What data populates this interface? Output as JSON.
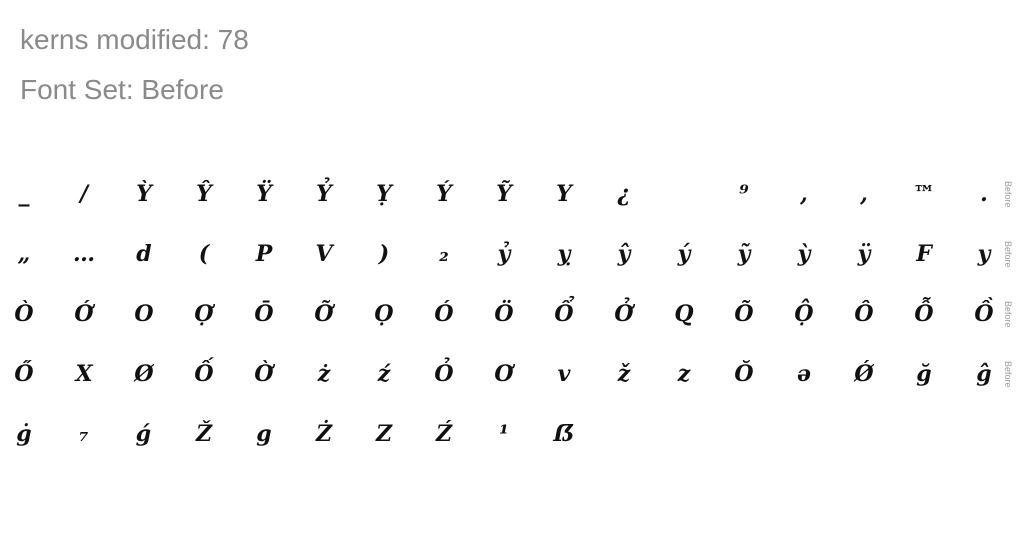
{
  "header": {
    "kerns_text": "kerns modified: 78",
    "fontset_text": "Font Set: Before"
  },
  "rows": [
    {
      "tag": "Before",
      "glyphs": [
        "_",
        "/",
        "Ỳ",
        "Ŷ",
        "Ÿ",
        "Ỷ",
        "Ỵ",
        "Ý",
        "Ỹ",
        "Y",
        "¿",
        "",
        "⁹",
        ",",
        ",",
        "™",
        "."
      ]
    },
    {
      "tag": "Before",
      "glyphs": [
        "„",
        "…",
        "d",
        "(",
        "P",
        "V",
        ")",
        "₂",
        "ỷ",
        "ỵ",
        "ŷ",
        "ý",
        "ỹ",
        "ỳ",
        "ÿ",
        "F",
        "y"
      ]
    },
    {
      "tag": "Before",
      "glyphs": [
        "Ò",
        "Ớ",
        "O",
        "Ợ",
        "Ō",
        "Ỡ",
        "Ọ",
        "Ó",
        "Ö",
        "Ổ",
        "Ở",
        "Q",
        "Õ",
        "Ộ",
        "Ô",
        "Ỗ",
        "Ồ"
      ]
    },
    {
      "tag": "Before",
      "glyphs": [
        "Ő",
        "X",
        "Ø",
        "Ố",
        "Ờ",
        "ż",
        "ź",
        "Ỏ",
        "Ơ",
        "v",
        "ž",
        "z",
        "Ŏ",
        "ə",
        "Ǿ",
        "ğ",
        "ĝ"
      ]
    },
    {
      "tag": "",
      "glyphs": [
        "ġ",
        "₇",
        "ǵ",
        "Ž",
        "g",
        "Ż",
        "Z",
        "Ź",
        "¹",
        "ẞ"
      ]
    }
  ]
}
